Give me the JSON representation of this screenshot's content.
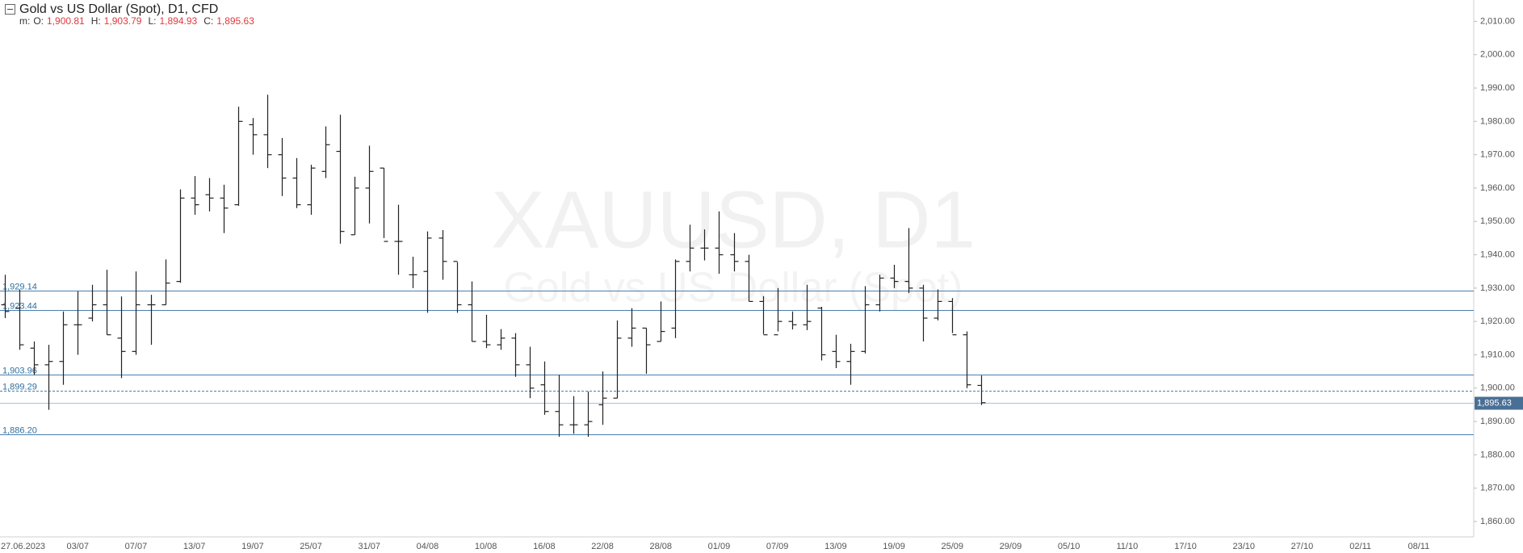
{
  "chart_data": {
    "type": "ohlc",
    "header": {
      "title": "Gold vs US Dollar (Spot),  D1,  CFD",
      "prefix": "m:",
      "fields": [
        {
          "name": "O:",
          "value": 1900.81,
          "label": "1,900.81"
        },
        {
          "name": "H:",
          "value": 1903.79,
          "label": "1,903.79"
        },
        {
          "name": "L:",
          "value": 1894.93,
          "label": "1,894.93"
        },
        {
          "name": "C:",
          "value": 1895.63,
          "label": "1,895.63"
        }
      ]
    },
    "watermark": {
      "symbol": "XAUUSD, D1",
      "description": "Gold vs US Dollar (Spot)"
    },
    "color": "#222222",
    "level_color": "#4a7fae",
    "grid": false,
    "ylim": [
      1855.4,
      2016.4
    ],
    "yticks": [
      {
        "value": 1860,
        "label": "1,860.00"
      },
      {
        "value": 1870,
        "label": "1,870.00"
      },
      {
        "value": 1880,
        "label": "1,880.00"
      },
      {
        "value": 1890,
        "label": "1,890.00"
      },
      {
        "value": 1900,
        "label": "1,900.00"
      },
      {
        "value": 1910,
        "label": "1,910.00"
      },
      {
        "value": 1920,
        "label": "1,920.00"
      },
      {
        "value": 1930,
        "label": "1,930.00"
      },
      {
        "value": 1940,
        "label": "1,940.00"
      },
      {
        "value": 1950,
        "label": "1,950.00"
      },
      {
        "value": 1960,
        "label": "1,960.00"
      },
      {
        "value": 1970,
        "label": "1,970.00"
      },
      {
        "value": 1980,
        "label": "1,980.00"
      },
      {
        "value": 1990,
        "label": "1,990.00"
      },
      {
        "value": 2000,
        "label": "2,000.00"
      },
      {
        "value": 2010,
        "label": "2,010.00"
      }
    ],
    "levels": [
      {
        "value": 1929.14,
        "label": "1,929.14",
        "style": "solid"
      },
      {
        "value": 1923.44,
        "label": "1,923.44",
        "style": "solid"
      },
      {
        "value": 1903.96,
        "label": "1,903.96",
        "style": "solid"
      },
      {
        "value": 1899.29,
        "label": "1,899.29",
        "style": "dashed"
      },
      {
        "value": 1886.2,
        "label": "1,886.20",
        "style": "solid"
      }
    ],
    "last_price": {
      "value": 1895.63,
      "label": "1,895.63"
    },
    "categories": [
      null,
      "27.06.2023",
      null,
      null,
      null,
      "03/07",
      null,
      null,
      null,
      "07/07",
      null,
      null,
      null,
      "13/07",
      null,
      null,
      null,
      "19/07",
      null,
      null,
      null,
      "25/07",
      null,
      null,
      null,
      "31/07",
      null,
      null,
      null,
      "04/08",
      null,
      null,
      null,
      "10/08",
      null,
      null,
      null,
      "16/08",
      null,
      null,
      null,
      "22/08",
      null,
      null,
      null,
      "28/08",
      null,
      null,
      null,
      "01/09",
      null,
      null,
      null,
      "07/09",
      null,
      null,
      null,
      "13/09",
      null,
      null,
      null,
      "19/09",
      null,
      null,
      null,
      "25/09",
      null,
      null,
      null,
      "29/09",
      null,
      null,
      null,
      "05/10",
      null,
      null,
      null,
      "11/10",
      null,
      null,
      null,
      "17/10",
      null,
      null,
      null,
      "23/10",
      null,
      null,
      null,
      "27/10",
      null,
      null,
      null,
      "02/11",
      null,
      null,
      null,
      "08/11"
    ],
    "open": [
      1925,
      1924,
      1912,
      1907,
      1908,
      1919,
      1921,
      1925,
      1915,
      1911,
      1925,
      1925,
      1932,
      1957,
      1958,
      1957,
      1955,
      1979,
      1976,
      1970,
      1963,
      1955,
      1965,
      1971,
      1946,
      1960,
      1966,
      1944,
      1934,
      1935,
      1945,
      1938,
      1925,
      1914,
      1913,
      1915,
      1907,
      1901,
      1893,
      1889,
      1889,
      1895,
      1897,
      1915,
      1918,
      1914,
      1918,
      1938,
      1942,
      1942,
      1940,
      1938,
      1926,
      1916,
      1920,
      1919,
      1924,
      1911,
      1908,
      1911,
      1925,
      1933,
      1932,
      1930,
      1921,
      1926,
      1916,
      1900.81,
      null,
      null,
      null,
      null,
      null,
      null,
      null,
      null,
      null,
      null,
      null,
      null,
      null,
      null,
      null,
      null,
      null,
      null,
      null,
      null,
      null,
      null,
      null,
      null,
      null,
      null,
      null,
      null,
      null,
      null
    ],
    "high": [
      1934,
      1929.6,
      1914,
      1913,
      1923,
      1929,
      1931,
      1935.5,
      1927.5,
      1935,
      1928,
      1938.6,
      1959.6,
      1963.6,
      1963,
      1961,
      1984.4,
      1981,
      1988,
      1975,
      1969,
      1967,
      1978.5,
      1982,
      1963.4,
      1972.7,
      1966,
      1955,
      1939.4,
      1947,
      1947.4,
      1937.8,
      1932,
      1922,
      1917.7,
      1916.5,
      1912.4,
      1908,
      1904,
      1897.6,
      1899,
      1905,
      1920.3,
      1924,
      1918,
      1926,
      1938.6,
      1949,
      1947.6,
      1953,
      1946.5,
      1940,
      1927.6,
      1930,
      1923,
      1931,
      1924.4,
      1916,
      1913.3,
      1930.6,
      1934,
      1937,
      1948,
      1931,
      1929.6,
      1927,
      1917,
      1903.79,
      null,
      null,
      null,
      null,
      null,
      null,
      null,
      null,
      null,
      null,
      null,
      null,
      null,
      null,
      null,
      null,
      null,
      null,
      null,
      null,
      null,
      null,
      null,
      null,
      null,
      null,
      null,
      null,
      null,
      null
    ],
    "low": [
      1921,
      1911.5,
      1904,
      1893.5,
      1901,
      1910,
      1920,
      1916,
      1903,
      1910,
      1913,
      1925,
      1931.6,
      1952,
      1953,
      1946.5,
      1954.7,
      1970,
      1966,
      1957.6,
      1954,
      1952,
      1963,
      1943.3,
      1946,
      1949.4,
      1945,
      1934,
      1930,
      1922.6,
      1932.5,
      1922.6,
      1914,
      1912,
      1911.5,
      1903.4,
      1897,
      1892,
      1885.4,
      1886.3,
      1885.4,
      1889,
      1897,
      1912.4,
      1904.3,
      1914,
      1915,
      1935,
      1938.3,
      1934.3,
      1935,
      1926,
      1916.2,
      1917,
      1917.6,
      1917.4,
      1908.3,
      1906,
      1901,
      1910.4,
      1923,
      1930,
      1928.5,
      1914,
      1920.3,
      1916.5,
      1900,
      1894.93,
      null,
      null,
      null,
      null,
      null,
      null,
      null,
      null,
      null,
      null,
      null,
      null,
      null,
      null,
      null,
      null,
      null,
      null,
      null,
      null,
      null,
      null,
      null,
      null,
      null,
      null,
      null,
      null,
      null,
      null
    ],
    "close": [
      1923,
      1913,
      1907,
      1908,
      1919,
      1919,
      1925,
      1916,
      1911,
      1925,
      1925,
      1931.5,
      1957,
      1955,
      1957,
      1954,
      1980,
      1976,
      1970,
      1963,
      1955,
      1966,
      1973,
      1947,
      1960,
      1965,
      1944,
      1944,
      1934,
      1945,
      1938,
      1925,
      1914,
      1913,
      1915,
      1907,
      1900,
      1893,
      1889,
      1889,
      1890,
      1897,
      1915,
      1918,
      1913,
      1917,
      1938,
      1942,
      1942,
      1940,
      1938,
      1926,
      1916,
      1920,
      1919,
      1920,
      1910,
      1908,
      1911,
      1925,
      1933,
      1932,
      1930,
      1921,
      1926,
      1916,
      1901,
      1895.63,
      null,
      null,
      null,
      null,
      null,
      null,
      null,
      null,
      null,
      null,
      null,
      null,
      null,
      null,
      null,
      null,
      null,
      null,
      null,
      null,
      null,
      null,
      null,
      null,
      null,
      null,
      null,
      null,
      null,
      null
    ]
  }
}
